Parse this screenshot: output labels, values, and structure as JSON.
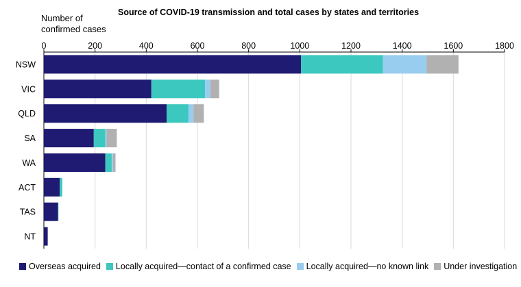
{
  "chart_data": {
    "type": "bar",
    "orientation": "horizontal",
    "stacked": true,
    "title": "Source of COVID-19 transmission and total cases by states and territories",
    "axis_title": "Number of\nconfirmed cases",
    "xlim": [
      0,
      1800
    ],
    "xticks": [
      0,
      200,
      400,
      600,
      800,
      1000,
      1200,
      1400,
      1600,
      1800
    ],
    "grid": true,
    "legend_position": "bottom",
    "categories": [
      "NSW",
      "VIC",
      "QLD",
      "SA",
      "WA",
      "ACT",
      "TAS",
      "NT"
    ],
    "series": [
      {
        "name": "Overseas acquired",
        "color": "#1f1a72",
        "values": [
          1005,
          420,
          480,
          195,
          240,
          62,
          55,
          15
        ]
      },
      {
        "name": "Locally acquired—contact of a confirmed case",
        "color": "#3cc8bf",
        "values": [
          320,
          210,
          85,
          45,
          25,
          10,
          2,
          0
        ]
      },
      {
        "name": "Locally acquired—no known link",
        "color": "#99cdef",
        "values": [
          170,
          20,
          20,
          5,
          5,
          0,
          0,
          0
        ]
      },
      {
        "name": "Under investigation",
        "color": "#b1b1b1",
        "values": [
          125,
          35,
          40,
          40,
          10,
          0,
          0,
          0
        ]
      }
    ]
  }
}
